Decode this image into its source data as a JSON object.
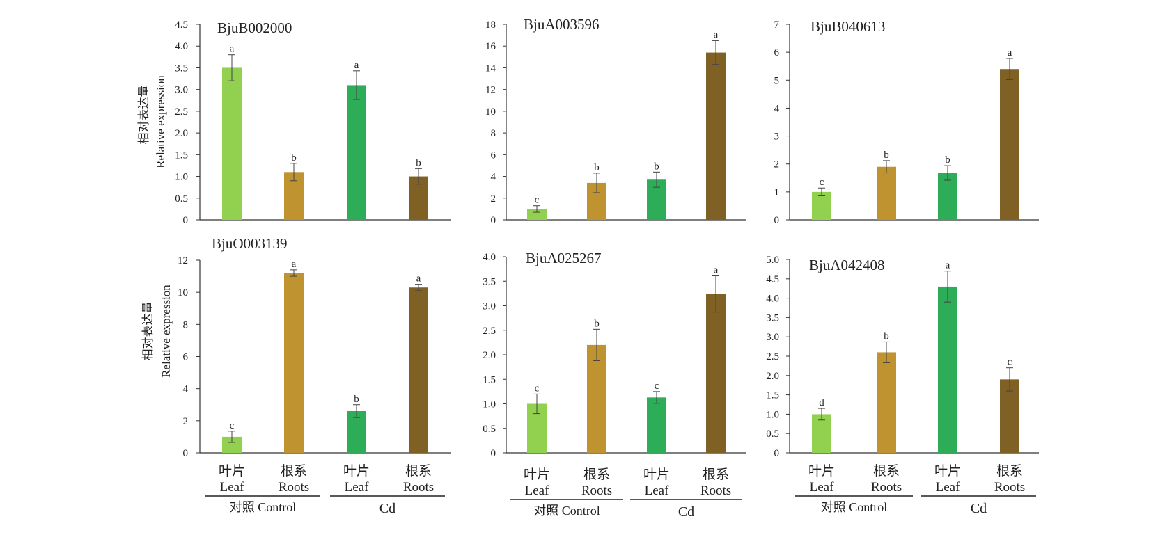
{
  "y_label_cn": "相对表达量",
  "y_label_en": "Relative expression",
  "categories": [
    "叶片 Leaf",
    "根系 Roots",
    "叶片 Leaf",
    "根系 Roots"
  ],
  "category_cn": [
    "叶片",
    "根系",
    "叶片",
    "根系"
  ],
  "category_en": [
    "Leaf",
    "Roots",
    "Leaf",
    "Roots"
  ],
  "groups": [
    {
      "label": "对照  Control"
    },
    {
      "label": "Cd"
    }
  ],
  "bar_colors": [
    "#92d050",
    "#bf9430",
    "#2ead58",
    "#7f6025"
  ],
  "chart_data": [
    {
      "type": "bar",
      "title": "BjuB002000",
      "categories": [
        "Leaf",
        "Roots",
        "Leaf",
        "Roots"
      ],
      "values": [
        3.5,
        1.1,
        3.1,
        1.0
      ],
      "errors": [
        0.3,
        0.2,
        0.33,
        0.18
      ],
      "significance": [
        "a",
        "b",
        "a",
        "b"
      ],
      "ylim": [
        0,
        4.5
      ],
      "yticks": [
        "0",
        "0.5",
        "1.0",
        "1.5",
        "2.0",
        "2.5",
        "3.0",
        "3.5",
        "4.0",
        "4.5"
      ]
    },
    {
      "type": "bar",
      "title": "BjuA003596",
      "categories": [
        "Leaf",
        "Roots",
        "Leaf",
        "Roots"
      ],
      "values": [
        1.0,
        3.4,
        3.7,
        15.4
      ],
      "errors": [
        0.3,
        0.9,
        0.7,
        1.1
      ],
      "significance": [
        "c",
        "b",
        "b",
        "a"
      ],
      "ylim": [
        0,
        18
      ],
      "yticks": [
        "0",
        "2",
        "4",
        "6",
        "8",
        "10",
        "12",
        "14",
        "16",
        "18"
      ]
    },
    {
      "type": "bar",
      "title": "BjuB040613",
      "categories": [
        "Leaf",
        "Roots",
        "Leaf",
        "Roots"
      ],
      "values": [
        1.0,
        1.9,
        1.68,
        5.4
      ],
      "errors": [
        0.14,
        0.22,
        0.26,
        0.38
      ],
      "significance": [
        "c",
        "b",
        "b",
        "a"
      ],
      "ylim": [
        0,
        7
      ],
      "yticks": [
        "0",
        "1",
        "2",
        "3",
        "4",
        "5",
        "6",
        "7"
      ]
    },
    {
      "type": "bar",
      "title": "BjuO003139",
      "categories": [
        "Leaf",
        "Roots",
        "Leaf",
        "Roots"
      ],
      "values": [
        1.0,
        11.2,
        2.6,
        10.3
      ],
      "errors": [
        0.35,
        0.2,
        0.4,
        0.2
      ],
      "significance": [
        "c",
        "a",
        "b",
        "a"
      ],
      "ylim": [
        0,
        12
      ],
      "yticks": [
        "0",
        "2",
        "4",
        "6",
        "8",
        "10",
        "12"
      ]
    },
    {
      "type": "bar",
      "title": "BjuA025267",
      "categories": [
        "Leaf",
        "Roots",
        "Leaf",
        "Roots"
      ],
      "values": [
        1.0,
        2.2,
        1.13,
        3.24
      ],
      "errors": [
        0.2,
        0.32,
        0.12,
        0.37
      ],
      "significance": [
        "c",
        "b",
        "c",
        "a"
      ],
      "ylim": [
        0,
        4.0
      ],
      "yticks": [
        "0",
        "0.5",
        "1.0",
        "1.5",
        "2.0",
        "2.5",
        "3.0",
        "3.5",
        "4.0"
      ]
    },
    {
      "type": "bar",
      "title": "BjuA042408",
      "categories": [
        "Leaf",
        "Roots",
        "Leaf",
        "Roots"
      ],
      "values": [
        1.0,
        2.6,
        4.3,
        1.9
      ],
      "errors": [
        0.15,
        0.27,
        0.4,
        0.3
      ],
      "significance": [
        "d",
        "b",
        "a",
        "c"
      ],
      "ylim": [
        0,
        5.0
      ],
      "yticks": [
        "0",
        "0.5",
        "1.0",
        "1.5",
        "2.0",
        "2.5",
        "3.0",
        "3.5",
        "4.0",
        "4.5",
        "5.0"
      ]
    }
  ]
}
